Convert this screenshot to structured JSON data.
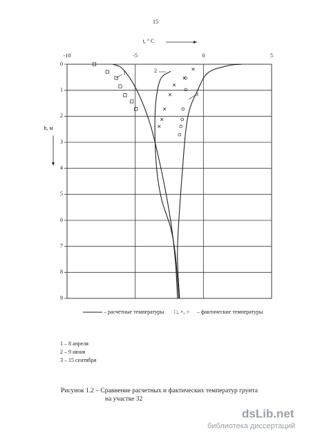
{
  "page_number": "15",
  "chart_data": {
    "type": "line",
    "x_label": "t, ° C",
    "y_label": "h, м",
    "xlim": [
      -10,
      5
    ],
    "xticks": [
      -10,
      -5,
      0,
      5
    ],
    "ylim": [
      0,
      9
    ],
    "yticks": [
      0,
      1,
      2,
      3,
      4,
      5,
      6,
      7,
      8,
      9
    ],
    "y_inverted": true,
    "grid": true,
    "color": "#222222",
    "series": [
      {
        "name": "1",
        "x": [
          -6.65,
          -5.9,
          -4.9,
          -3.9,
          -3.05,
          -2.4,
          -2.05,
          -1.9
        ],
        "y": [
          0,
          0.19,
          0.98,
          2.31,
          4.16,
          6.02,
          7.61,
          9
        ]
      },
      {
        "name": "2",
        "x": [
          -2.4,
          -3.15,
          -3.5,
          -3.55,
          -3.4,
          -3.05,
          -2.4,
          -2.05,
          -1.8
        ],
        "y": [
          0.27,
          0.58,
          1.51,
          2.84,
          4.16,
          5.23,
          6.29,
          7.35,
          9
        ]
      },
      {
        "name": "3",
        "x": [
          2.85,
          1.85,
          0.35,
          -0.4,
          -1.15,
          -1.55,
          -1.9,
          -1.75
        ],
        "y": [
          0,
          0.05,
          0.32,
          0.98,
          2.04,
          4.16,
          7.08,
          9
        ]
      }
    ],
    "measured": [
      {
        "marker": "square",
        "x": [
          -8,
          -7.05,
          -6.4,
          -6.1,
          -5.75,
          -5.25,
          -4.95
        ],
        "y": [
          0,
          0.29,
          0.53,
          0.85,
          1.19,
          1.43,
          1.72
        ]
      },
      {
        "marker": "cross",
        "x": [
          -0.75,
          -1.4,
          -2.15,
          -2.45,
          -2.85,
          -3.05,
          -3.25
        ],
        "y": [
          0.19,
          0.53,
          0.8,
          1.17,
          1.72,
          2.12,
          2.39
        ]
      },
      {
        "marker": "circle",
        "x": [
          -1.3,
          -1.3,
          -1.5,
          -1.55,
          -1.65,
          -1.75
        ],
        "y": [
          0.53,
          0.98,
          1.72,
          2.12,
          2.39,
          2.71
        ]
      }
    ],
    "legend": {
      "computed": "– расчетные температуры",
      "symbols": "□, ×, ○",
      "measured": "– фактические температуры"
    }
  },
  "notes": [
    "1 – 8 апреля",
    "2 – 9 июня",
    "3 – 15 сентября"
  ],
  "caption": [
    "Рисунок 1.2 – Сравнение расчетных и фактических температур грунта",
    "на участке 32"
  ],
  "watermark": {
    "brand": "dsLib.net",
    "tagline": "библиотека диссертаций"
  }
}
